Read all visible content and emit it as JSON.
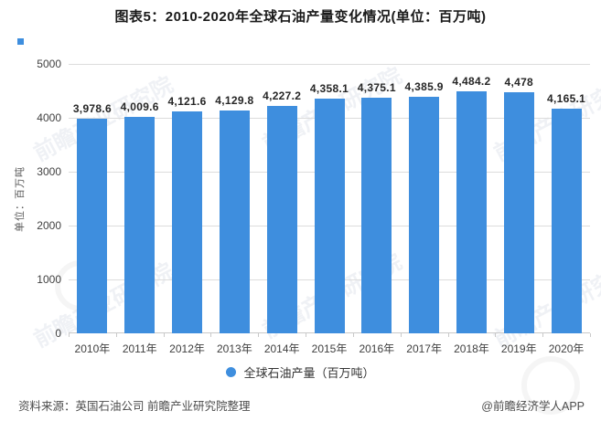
{
  "title": "图表5：2010-2020年全球石油产量变化情况(单位：百万吨)",
  "chart_data": {
    "type": "bar",
    "categories": [
      "2010年",
      "2011年",
      "2012年",
      "2013年",
      "2014年",
      "2015年",
      "2016年",
      "2017年",
      "2018年",
      "2019年",
      "2020年"
    ],
    "values": [
      3978.6,
      4009.6,
      4121.6,
      4129.8,
      4227.2,
      4358.1,
      4375.1,
      4385.9,
      4484.2,
      4478,
      4165.1
    ],
    "value_labels": [
      "3,978.6",
      "4,009.6",
      "4,121.6",
      "4,129.8",
      "4,227.2",
      "4,358.1",
      "4,375.1",
      "4,385.9",
      "4,484.2",
      "4,478",
      "4,165.1"
    ],
    "title": "图表5：2010-2020年全球石油产量变化情况(单位：百万吨)",
    "xlabel": "",
    "ylabel": "单位：百万吨",
    "ylim": [
      0,
      5000
    ],
    "y_ticks": [
      0,
      1000,
      2000,
      3000,
      4000,
      5000
    ],
    "grid": true,
    "legend_position": "bottom",
    "series_name": "全球石油产量（百万吨）"
  },
  "legend": {
    "label": "全球石油产量（百万吨）"
  },
  "footer": {
    "source": "资料来源：英国石油公司 前瞻产业研究院整理",
    "credit": "@前瞻经济学人APP"
  },
  "watermark": {
    "text": "前瞻产业研究院"
  },
  "colors": {
    "bar": "#3E8EDE",
    "grid": "#DCDCDC",
    "axis_line": "#C9C9C9",
    "tick_text": "#404040",
    "value_text": "#262626",
    "title_text": "#1A1A1A",
    "unit_text": "#595959",
    "footer_text": "#4D4D4D",
    "watermark": "#96A5BE"
  }
}
